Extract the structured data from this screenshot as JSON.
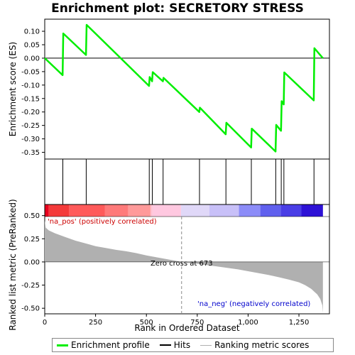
{
  "title": "Enrichment plot: SECRETORY STRESS",
  "colors": {
    "es_line": "#00ee00",
    "hit": "#000000",
    "metric_fill": "#b0b0b0",
    "zero_line": "#888888",
    "pos_label": "#cc0000",
    "neg_label": "#0000cc"
  },
  "legend": {
    "enrichment": "Enrichment profile",
    "hits": "Hits",
    "ranking": "Ranking metric scores"
  },
  "chart_data": [
    {
      "type": "line",
      "name": "enrichment-profile",
      "ylabel": "Enrichment score (ES)",
      "xlim": [
        0,
        1400
      ],
      "ylim": [
        -0.375,
        0.145
      ],
      "yticks": [
        0.1,
        0.05,
        0.0,
        -0.05,
        -0.1,
        -0.15,
        -0.2,
        -0.25,
        -0.3,
        -0.35
      ],
      "ytick_labels": [
        "0.10",
        "0.05",
        "0.00",
        "-0.05",
        "-0.10",
        "-0.15",
        "-0.20",
        "-0.25",
        "-0.30",
        "-0.35"
      ],
      "points": [
        [
          0,
          0.0
        ],
        [
          88,
          -0.063
        ],
        [
          91,
          0.092
        ],
        [
          203,
          0.012
        ],
        [
          206,
          0.124
        ],
        [
          513,
          -0.103
        ],
        [
          516,
          -0.07
        ],
        [
          528,
          -0.086
        ],
        [
          531,
          -0.052
        ],
        [
          581,
          -0.086
        ],
        [
          584,
          -0.073
        ],
        [
          760,
          -0.2
        ],
        [
          763,
          -0.184
        ],
        [
          890,
          -0.283
        ],
        [
          893,
          -0.24
        ],
        [
          1015,
          -0.332
        ],
        [
          1018,
          -0.262
        ],
        [
          1135,
          -0.347
        ],
        [
          1138,
          -0.248
        ],
        [
          1162,
          -0.27
        ],
        [
          1165,
          -0.16
        ],
        [
          1175,
          -0.172
        ],
        [
          1178,
          -0.053
        ],
        [
          1323,
          -0.157
        ],
        [
          1326,
          0.037
        ],
        [
          1368,
          0.0
        ]
      ]
    },
    {
      "type": "hits",
      "name": "hits",
      "xlim": [
        0,
        1400
      ],
      "positions": [
        89,
        204,
        514,
        529,
        582,
        761,
        891,
        1016,
        1136,
        1163,
        1176,
        1324
      ]
    },
    {
      "type": "area",
      "name": "ranking-metric",
      "xlabel": "Rank in Ordered Dataset",
      "ylabel": "Ranked list metric (PreRanked)",
      "xlim": [
        0,
        1400
      ],
      "ylim": [
        -0.56,
        0.62
      ],
      "xticks": [
        0,
        250,
        500,
        750,
        1000,
        1250
      ],
      "xtick_labels": [
        "0",
        "250",
        "500",
        "750",
        "1,000",
        "1,250"
      ],
      "yticks": [
        0.5,
        0.25,
        0.0,
        -0.25,
        -0.5
      ],
      "ytick_labels": [
        "0.50",
        "0.25",
        "0.00",
        "-0.25",
        "-0.50"
      ],
      "points": [
        [
          0,
          0.45
        ],
        [
          5,
          0.37
        ],
        [
          20,
          0.34
        ],
        [
          50,
          0.31
        ],
        [
          100,
          0.27
        ],
        [
          150,
          0.23
        ],
        [
          200,
          0.2
        ],
        [
          250,
          0.17
        ],
        [
          300,
          0.15
        ],
        [
          350,
          0.13
        ],
        [
          400,
          0.115
        ],
        [
          450,
          0.095
        ],
        [
          500,
          0.07
        ],
        [
          550,
          0.05
        ],
        [
          600,
          0.03
        ],
        [
          650,
          0.01
        ],
        [
          673,
          0.0
        ],
        [
          700,
          -0.01
        ],
        [
          750,
          -0.02
        ],
        [
          800,
          -0.035
        ],
        [
          850,
          -0.05
        ],
        [
          900,
          -0.065
        ],
        [
          950,
          -0.08
        ],
        [
          1000,
          -0.1
        ],
        [
          1050,
          -0.12
        ],
        [
          1100,
          -0.14
        ],
        [
          1150,
          -0.165
        ],
        [
          1200,
          -0.19
        ],
        [
          1250,
          -0.22
        ],
        [
          1280,
          -0.25
        ],
        [
          1310,
          -0.29
        ],
        [
          1340,
          -0.35
        ],
        [
          1355,
          -0.4
        ],
        [
          1365,
          -0.47
        ],
        [
          1368,
          -0.55
        ]
      ],
      "zero_cross": 673,
      "zero_cross_label": "Zero cross at 673",
      "pos_label": "'na_pos' (positively correlated)",
      "neg_label": "'na_neg' (negatively correlated)"
    },
    {
      "type": "heatmap",
      "name": "rank-colorbar",
      "xlim": [
        0,
        1400
      ],
      "segments": [
        {
          "start": 0,
          "end": 20,
          "color": "#e8001e"
        },
        {
          "start": 20,
          "end": 120,
          "color": "#f43a3a"
        },
        {
          "start": 120,
          "end": 295,
          "color": "#ff5a5a"
        },
        {
          "start": 295,
          "end": 410,
          "color": "#ff7a7a"
        },
        {
          "start": 410,
          "end": 520,
          "color": "#ff9a9a"
        },
        {
          "start": 520,
          "end": 530,
          "color": "#ffc0d0"
        },
        {
          "start": 530,
          "end": 670,
          "color": "#ffc8e0"
        },
        {
          "start": 670,
          "end": 810,
          "color": "#e0d8f8"
        },
        {
          "start": 810,
          "end": 955,
          "color": "#c8c0f8"
        },
        {
          "start": 955,
          "end": 1060,
          "color": "#8c8cf8"
        },
        {
          "start": 1060,
          "end": 1160,
          "color": "#6060ee"
        },
        {
          "start": 1160,
          "end": 1262,
          "color": "#4a3ee6"
        },
        {
          "start": 1262,
          "end": 1368,
          "color": "#2e12d6"
        }
      ]
    }
  ]
}
